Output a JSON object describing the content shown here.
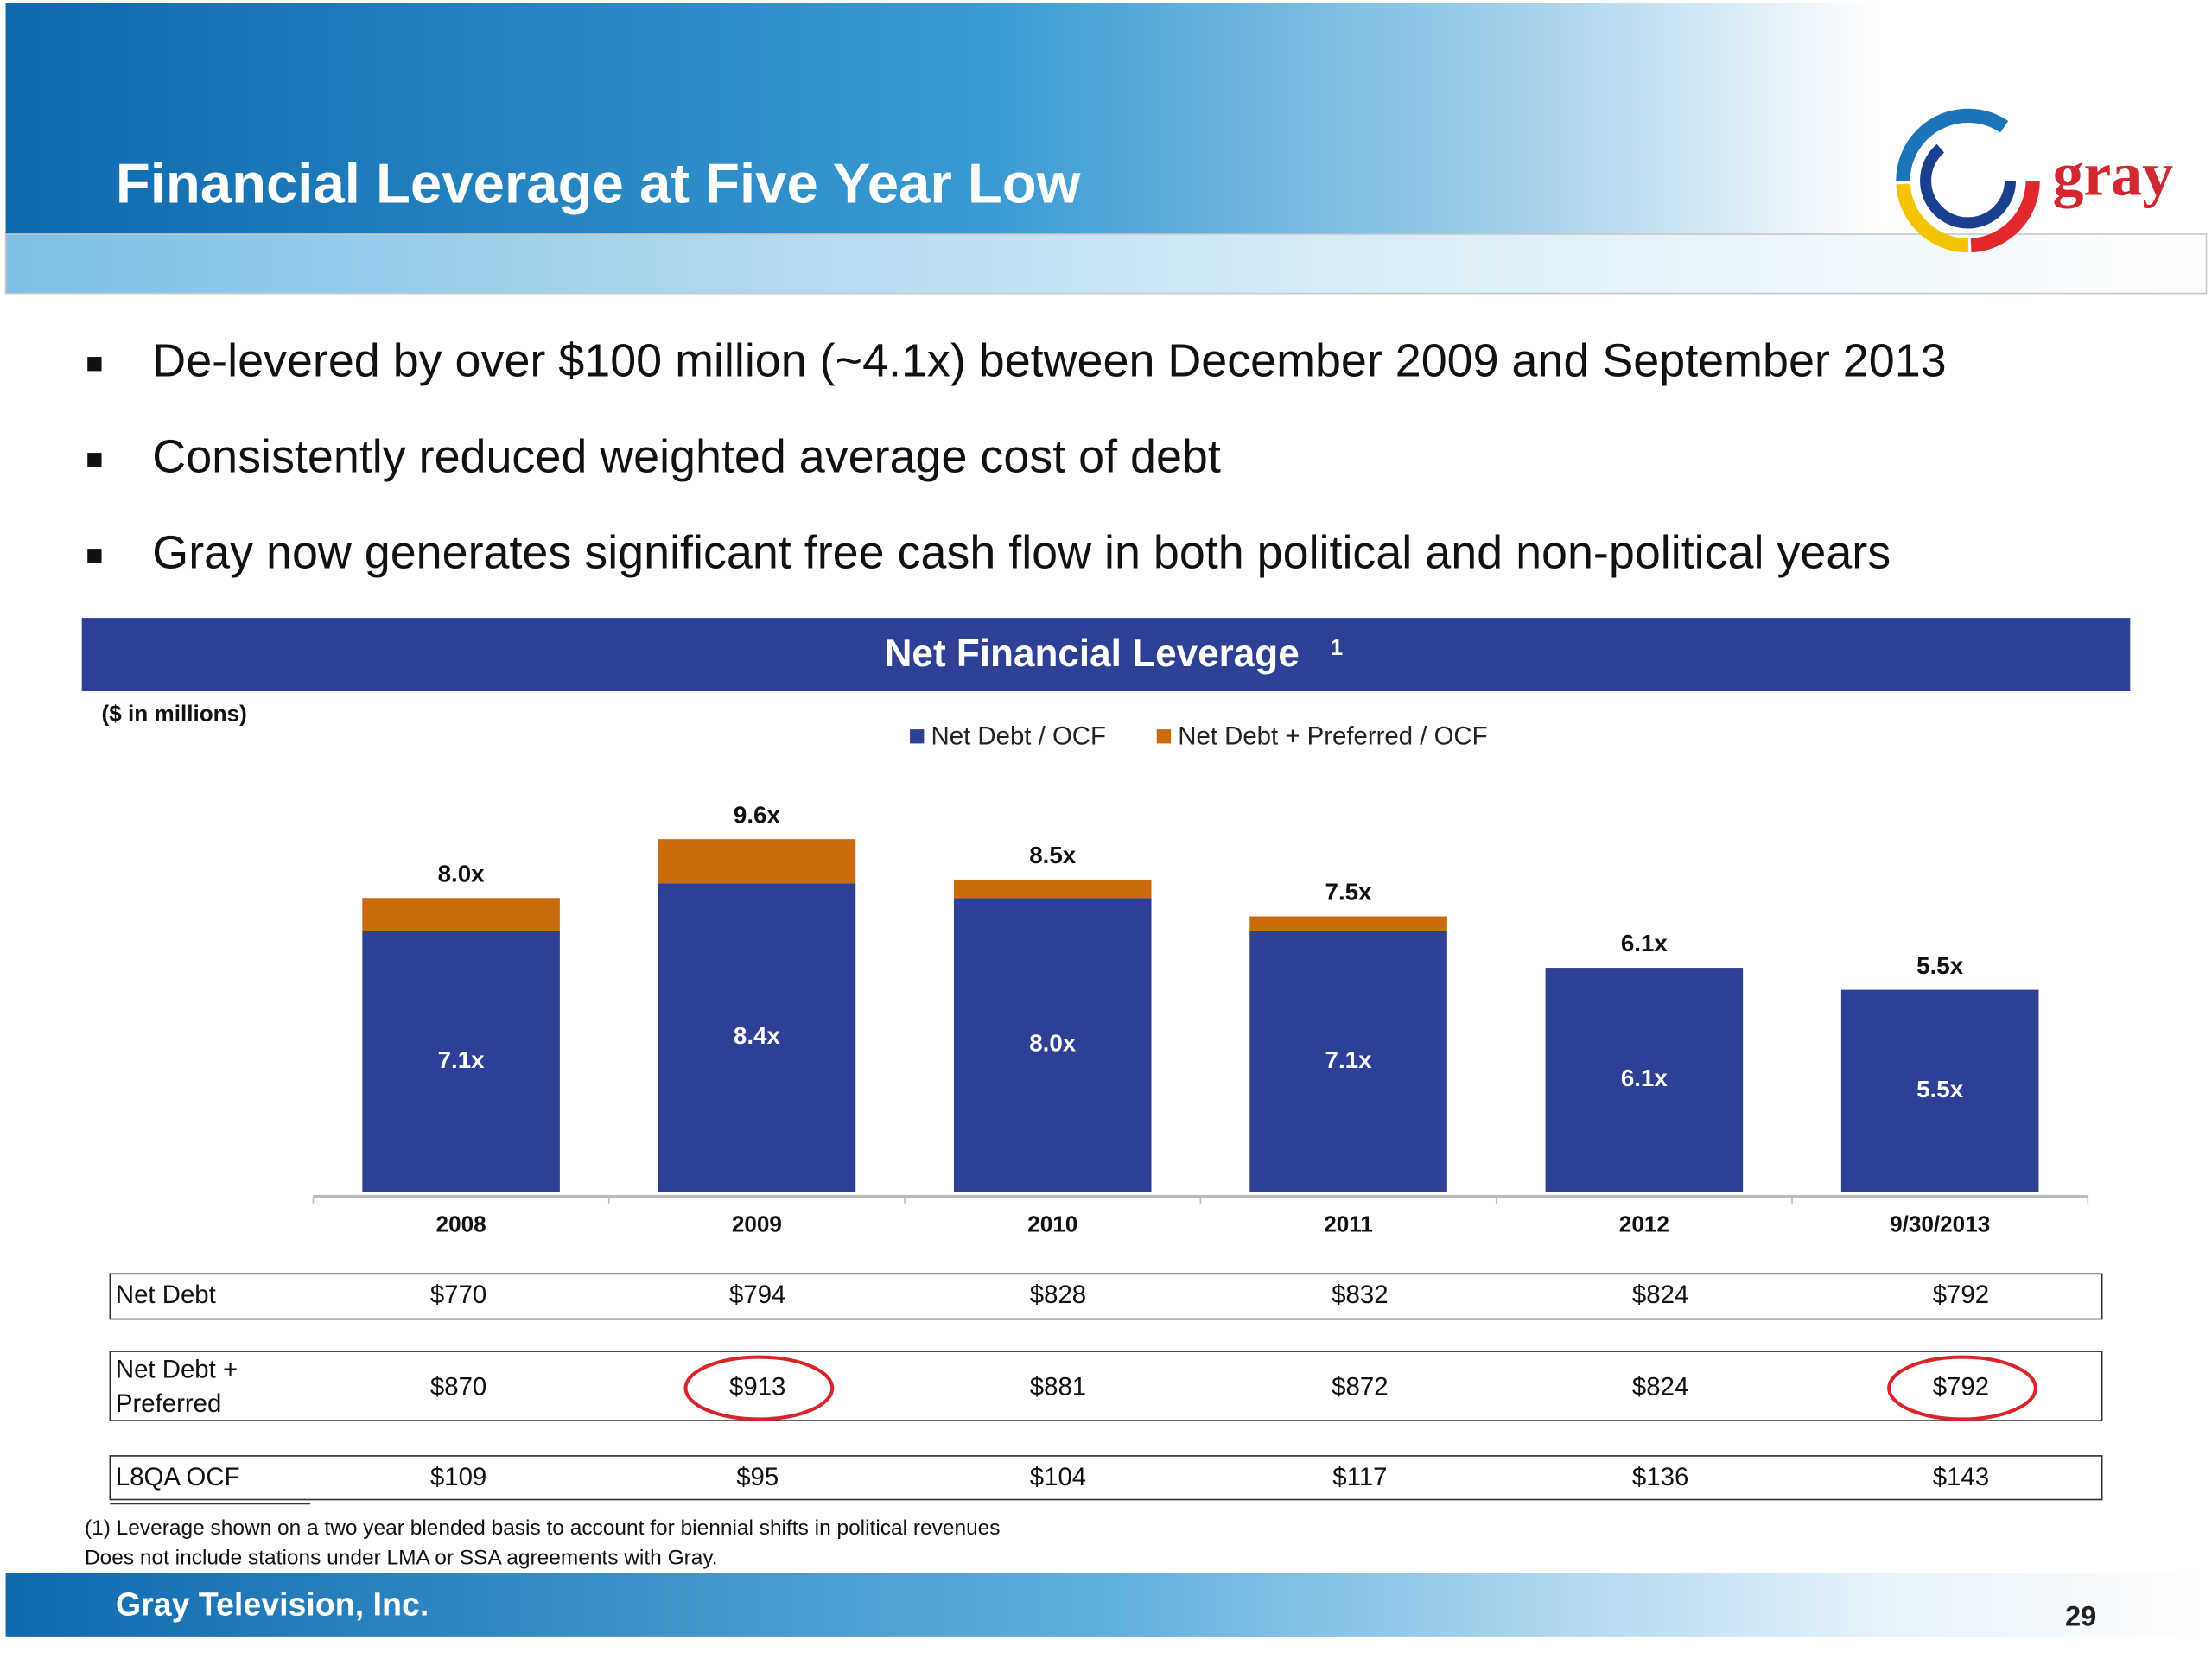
{
  "title": "Financial Leverage at Five Year Low",
  "logo": {
    "text": "gray"
  },
  "bullets": [
    "De-levered by over $100 million (~4.1x) between December 2009 and September 2013",
    "Consistently reduced weighted average cost of debt",
    "Gray now generates significant free cash flow in both political and non-political years"
  ],
  "chart_data": {
    "type": "bar",
    "stacked": true,
    "title": "Net Financial Leverage",
    "title_note": "1",
    "categories": [
      "2008",
      "2009",
      "2010",
      "2011",
      "2012",
      "9/30/2013"
    ],
    "series": [
      {
        "name": "Net Debt / OCF",
        "color": "#2e3f96",
        "values": [
          7.1,
          8.4,
          8.0,
          7.1,
          6.1,
          5.5
        ],
        "value_labels": [
          "7.1x",
          "8.4x",
          "8.0x",
          "7.1x",
          "6.1x",
          "5.5x"
        ]
      },
      {
        "name": "Net Debt + Preferred / OCF",
        "color": "#cc6a0e",
        "values": [
          0.9,
          1.2,
          0.5,
          0.4,
          0,
          0
        ]
      }
    ],
    "totals": [
      8.0,
      9.6,
      8.5,
      7.5,
      6.1,
      5.5
    ],
    "total_labels": [
      "8.0x",
      "9.6x",
      "8.5x",
      "7.5x",
      "6.1x",
      "5.5x"
    ],
    "ylim": [
      0,
      10
    ]
  },
  "note": "($ in millions)",
  "table": {
    "rows": [
      {
        "label": [
          "Net Debt"
        ],
        "values": [
          "$770",
          "$794",
          "$828",
          "$832",
          "$824",
          "$792"
        ]
      },
      {
        "label": [
          "Net Debt +",
          "Preferred"
        ],
        "values": [
          "$870",
          "$913",
          "$881",
          "$872",
          "$824",
          "$792"
        ]
      },
      {
        "label": [
          "L8QA OCF"
        ],
        "values": [
          "$109",
          "$95",
          "$104",
          "$117",
          "$136",
          "$143"
        ]
      }
    ]
  },
  "footnotes": [
    "(1)    Leverage shown on a two year blended basis to account for biennial shifts in political revenues",
    "Does not include stations under LMA or SSA agreements with Gray."
  ],
  "footer": "Gray Television, Inc.",
  "page_number": "29"
}
